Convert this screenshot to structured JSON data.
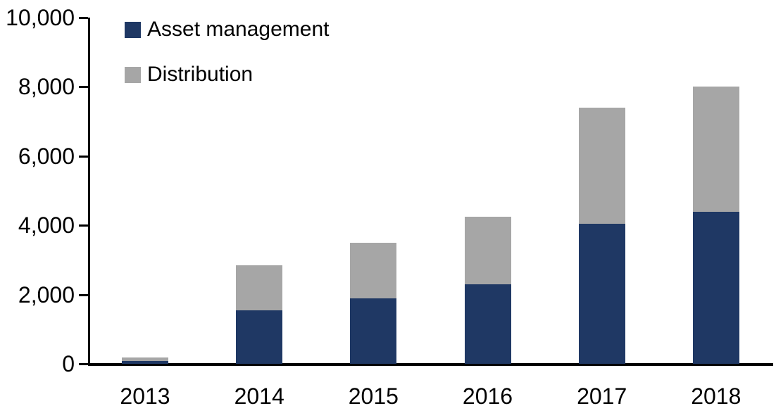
{
  "chart_data": {
    "type": "bar",
    "stacked": true,
    "title": "",
    "xlabel": "",
    "ylabel": "",
    "categories": [
      "2013",
      "2014",
      "2015",
      "2016",
      "2017",
      "2018"
    ],
    "series": [
      {
        "name": "Asset management",
        "color": "#1F3864",
        "values": [
          80,
          1550,
          1900,
          2300,
          4050,
          4400
        ]
      },
      {
        "name": "Distribution",
        "color": "#A6A6A6",
        "values": [
          100,
          1300,
          1600,
          1950,
          3350,
          3600
        ]
      }
    ],
    "totals": [
      180,
      2850,
      3500,
      4250,
      7400,
      8000
    ],
    "ylim": [
      0,
      10000
    ],
    "ytick_interval": 2000,
    "ytick_labels": [
      "0",
      "2,000",
      "4,000",
      "6,000",
      "8,000",
      "10,000"
    ],
    "grid": false,
    "legend_position": "top-left",
    "axis_color": "#000000",
    "background_color": "#FFFFFF"
  },
  "legend": {
    "items": [
      {
        "label": "Asset management",
        "color": "#1F3864"
      },
      {
        "label": "Distribution",
        "color": "#A6A6A6"
      }
    ]
  }
}
